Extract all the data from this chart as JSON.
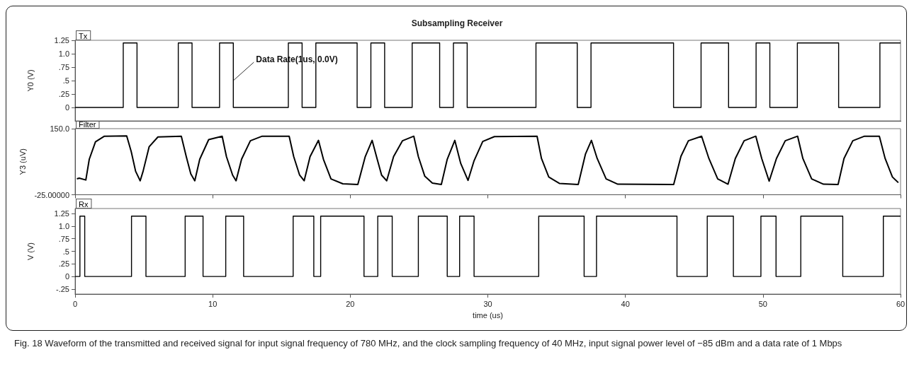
{
  "chart_data": [
    {
      "type": "line",
      "title": "Subsampling Receiver",
      "ylabel": "Y0 (V)",
      "xlim": [
        0,
        60
      ],
      "xticks": [
        0,
        10,
        20,
        30,
        40,
        50,
        60
      ],
      "ylim": [
        -0.25,
        1.25
      ],
      "yticks": [
        {
          "value": 0,
          "label": "0"
        },
        {
          "value": 0.25,
          "label": ".25"
        },
        {
          "value": 0.5,
          "label": ".5"
        },
        {
          "value": 0.75,
          "label": ".75"
        },
        {
          "value": 1,
          "label": "1.0"
        },
        {
          "value": 1.25,
          "label": "1.25"
        }
      ],
      "tick_labels": "y",
      "grid": false,
      "marker": "none",
      "line_style": "solid",
      "annotations": [
        {
          "text": "Data Rate(1us, 0.0V)",
          "x": 11.5,
          "y": 0.5
        }
      ],
      "series": [
        {
          "name": "Tx",
          "color": "#000000",
          "x": [
            0,
            3.5,
            3.5,
            4.5,
            4.5,
            7.5,
            7.5,
            8.5,
            8.5,
            10.5,
            10.5,
            11.5,
            11.5,
            15.5,
            15.5,
            16.5,
            16.5,
            17.5,
            17.5,
            20.5,
            20.5,
            21.5,
            21.5,
            22.5,
            22.5,
            24.5,
            24.5,
            26.5,
            26.5,
            27.5,
            27.5,
            28.5,
            28.5,
            33.5,
            33.5,
            36.5,
            36.5,
            37.5,
            37.5,
            43.5,
            43.5,
            45.5,
            45.5,
            47.5,
            47.5,
            49.5,
            49.5,
            50.5,
            50.5,
            52.5,
            52.5,
            55.5,
            55.5,
            58.5,
            58.5,
            60
          ],
          "values": [
            0,
            0,
            1.2,
            1.2,
            0,
            0,
            1.2,
            1.2,
            0,
            0,
            1.2,
            1.2,
            0,
            0,
            1.2,
            1.2,
            0,
            0,
            1.2,
            1.2,
            0,
            0,
            1.2,
            1.2,
            0,
            0,
            1.2,
            1.2,
            0,
            0,
            1.2,
            1.2,
            0,
            0,
            1.2,
            1.2,
            0,
            0,
            1.2,
            1.2,
            0,
            0,
            1.2,
            1.2,
            0,
            0,
            1.2,
            1.2,
            0,
            0,
            1.2,
            1.2,
            0,
            0,
            1.2,
            1.2
          ]
        }
      ]
    },
    {
      "type": "line",
      "ylabel": "Y3 (uV)",
      "xlim": [
        0,
        60
      ],
      "xticks": [
        0,
        10,
        20,
        30,
        40,
        50,
        60
      ],
      "ylim": [
        -25,
        150
      ],
      "yticks": [
        {
          "value": -25,
          "label": "-25.00000"
        },
        {
          "value": 150,
          "label": "150.0"
        }
      ],
      "tick_labels": "y",
      "grid": false,
      "marker": "none",
      "line_style": "solid",
      "series": [
        {
          "name": "Filter",
          "color": "#000000",
          "x": [
            0.13,
            0.3,
            0.78,
            1.03,
            1.48,
            2.13,
            3.75,
            4.08,
            4.4,
            4.73,
            4.94,
            5.38,
            6.02,
            7.72,
            8.08,
            8.41,
            8.7,
            9.06,
            9.71,
            10.69,
            11.0,
            11.45,
            11.7,
            12.1,
            12.74,
            13.6,
            15.56,
            15.89,
            16.32,
            16.65,
            17.08,
            17.69,
            18.05,
            18.6,
            19.46,
            20.55,
            21.09,
            21.59,
            21.96,
            22.28,
            22.65,
            23.15,
            23.8,
            24.62,
            24.95,
            25.42,
            25.97,
            26.62,
            27.05,
            27.6,
            28.03,
            28.56,
            28.99,
            29.63,
            30.48,
            33.58,
            33.9,
            34.43,
            35.2,
            36.57,
            37.1,
            37.53,
            37.95,
            38.6,
            39.45,
            43.51,
            44.04,
            44.58,
            45.54,
            46.07,
            46.71,
            47.46,
            47.99,
            48.63,
            49.48,
            49.91,
            50.45,
            50.98,
            51.62,
            52.52,
            52.9,
            53.54,
            54.4,
            55.46,
            55.89,
            56.53,
            57.38,
            58.46,
            58.88,
            59.41,
            59.84
          ],
          "values": [
            17,
            19,
            14,
            69,
            115,
            130,
            131,
            89,
            37,
            12,
            37,
            102,
            128,
            130,
            76,
            30,
            12,
            69,
            121,
            130,
            76,
            27,
            12,
            69,
            118,
            130,
            130,
            76,
            27,
            12,
            76,
            119,
            69,
            17,
            4,
            2,
            76,
            119,
            69,
            27,
            12,
            76,
            118,
            130,
            76,
            24,
            6,
            2,
            69,
            119,
            58,
            13,
            64,
            116,
            129,
            130,
            71,
            22,
            5,
            2,
            83,
            119,
            71,
            17,
            3,
            2,
            77,
            118,
            130,
            71,
            17,
            3,
            71,
            118,
            130,
            71,
            11,
            71,
            118,
            130,
            71,
            17,
            3,
            2,
            71,
            118,
            130,
            130,
            71,
            22,
            7
          ]
        }
      ]
    },
    {
      "type": "line",
      "xlabel": "time (us)",
      "ylabel": "V (V)",
      "xlim": [
        0,
        60
      ],
      "xticks": [
        0,
        10,
        20,
        30,
        40,
        50,
        60
      ],
      "ylim": [
        -0.35,
        1.35
      ],
      "yticks": [
        {
          "value": -0.25,
          "label": "-.25"
        },
        {
          "value": 0,
          "label": "0"
        },
        {
          "value": 0.25,
          "label": ".25"
        },
        {
          "value": 0.5,
          "label": ".5"
        },
        {
          "value": 0.75,
          "label": ".75"
        },
        {
          "value": 1,
          "label": "1.0"
        },
        {
          "value": 1.25,
          "label": "1.25"
        }
      ],
      "grid": false,
      "marker": "none",
      "line_style": "solid",
      "annotations": [
        "Fig. 18 Waveform of the transmitted and received signal for input signal frequency of 780 MHz, and the clock sampling frequency of 40 MHz, input signal power level of −85 dBm and a data rate of 1 Mbps"
      ],
      "series": [
        {
          "name": "Rx",
          "color": "#000000",
          "x": [
            0,
            0.35,
            0.35,
            0.7,
            0.7,
            4.1,
            4.1,
            5.15,
            5.15,
            8,
            8,
            9.3,
            9.3,
            10.95,
            10.95,
            12.25,
            12.25,
            15.85,
            15.85,
            17.35,
            17.35,
            17.85,
            17.85,
            21,
            21,
            22,
            22,
            23.05,
            23.05,
            24.95,
            24.95,
            27.05,
            27.05,
            27.95,
            27.95,
            29,
            29,
            33.7,
            33.7,
            37,
            37,
            37.9,
            37.9,
            43.75,
            43.75,
            45.95,
            45.95,
            47.85,
            47.85,
            49.85,
            49.85,
            50.95,
            50.95,
            52.75,
            52.75,
            55.8,
            55.8,
            58.75,
            58.75,
            60
          ],
          "values": [
            0,
            0,
            1.2,
            1.2,
            0,
            0,
            1.2,
            1.2,
            0,
            0,
            1.2,
            1.2,
            0,
            0,
            1.2,
            1.2,
            0,
            0,
            1.2,
            1.2,
            0,
            0,
            1.2,
            1.2,
            0,
            0,
            1.2,
            1.2,
            0,
            0,
            1.2,
            1.2,
            0,
            0,
            1.2,
            1.2,
            0,
            0,
            1.2,
            1.2,
            0,
            0,
            1.2,
            1.2,
            0,
            0,
            1.2,
            1.2,
            0,
            0,
            1.2,
            1.2,
            0,
            0,
            1.2,
            1.2,
            0,
            0,
            1.2,
            1.2
          ]
        }
      ]
    }
  ]
}
